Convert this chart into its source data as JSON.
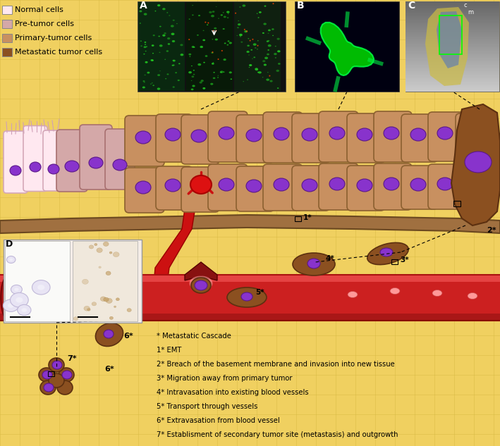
{
  "figsize": [
    7.09,
    6.33
  ],
  "dpi": 100,
  "bg_color": "#F0D060",
  "grid_color": "#D4B840",
  "legend_items": [
    {
      "label": "Normal cells",
      "color": "#FFE8F0"
    },
    {
      "label": "Pre-tumor cells",
      "color": "#D4A8A8"
    },
    {
      "label": "Primary-tumor cells",
      "color": "#C89060"
    },
    {
      "label": "Metastatic tumor cells",
      "color": "#8B5020"
    }
  ],
  "annotations": [
    "* Metastatic Cascade",
    "1* EMT",
    "2* Breach of the basement membrane and invasion into new tissue",
    "3* Migration away from primary tumor",
    "4* Intravasation into existing blood vessels",
    "5* Transport through vessels",
    "6* Extravasation from blood vessel",
    "7* Establisment of secondary tumor site (metastasis) and outgrowth"
  ],
  "normal_fc": "#FFE8F0",
  "normal_ec": "#D4A8B8",
  "pretumor_fc": "#D4A8A8",
  "pretumor_ec": "#A87070",
  "primary_fc": "#C89060",
  "primary_ec": "#8B6030",
  "meta_fc": "#8B5020",
  "meta_ec": "#5C3010",
  "nucleus_fc": "#8833CC",
  "nucleus_ec": "#5A1888",
  "basement_fc": "#A07040",
  "basement_ec": "#6B4820",
  "vessel_fc": "#CC2020",
  "vessel_ec": "#990000",
  "vessel_light": "#FF6666",
  "vessel_dark": "#881010"
}
